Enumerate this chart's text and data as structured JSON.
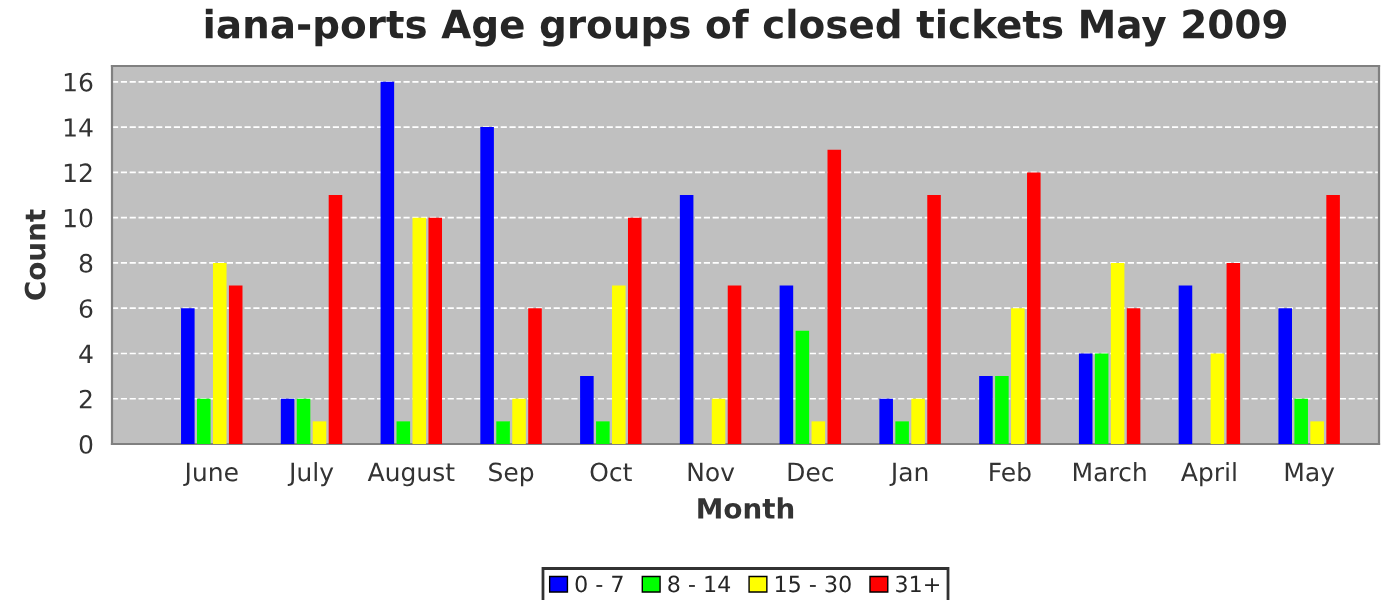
{
  "chart_data": {
    "type": "bar",
    "title": "iana-ports Age groups of closed tickets May 2009",
    "xlabel": "Month",
    "ylabel": "Count",
    "categories": [
      "June",
      "July",
      "August",
      "Sep",
      "Oct",
      "Nov",
      "Dec",
      "Jan",
      "Feb",
      "March",
      "April",
      "May"
    ],
    "series": [
      {
        "name": "0 - 7",
        "color": "#0000ff",
        "values": [
          6,
          2,
          16,
          14,
          3,
          11,
          7,
          2,
          3,
          4,
          7,
          6
        ]
      },
      {
        "name": "8 - 14",
        "color": "#00ff00",
        "values": [
          2,
          2,
          1,
          1,
          1,
          0,
          5,
          1,
          3,
          4,
          0,
          2
        ]
      },
      {
        "name": "15 - 30",
        "color": "#ffff00",
        "values": [
          8,
          1,
          10,
          2,
          7,
          2,
          1,
          2,
          6,
          8,
          4,
          1
        ]
      },
      {
        "name": "31+",
        "color": "#ff0000",
        "values": [
          7,
          11,
          10,
          6,
          10,
          7,
          13,
          11,
          12,
          6,
          8,
          11
        ]
      }
    ],
    "ylim": [
      0,
      16.7
    ],
    "yticks": [
      0,
      2,
      4,
      6,
      8,
      10,
      12,
      14,
      16
    ],
    "grid": "y",
    "legend": "bottom"
  }
}
